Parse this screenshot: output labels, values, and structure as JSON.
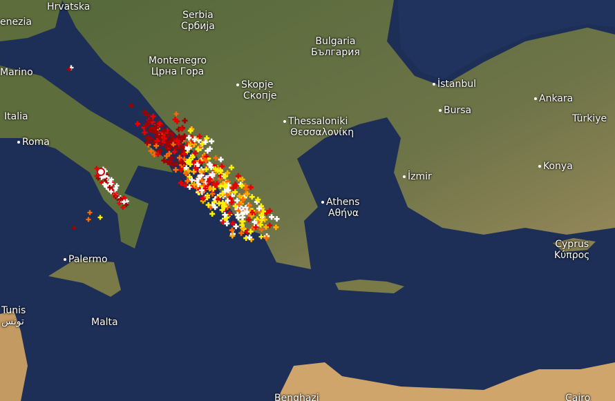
{
  "map": {
    "labels": {
      "hrvatska": "Hrvatska",
      "venezia": "enezia",
      "marino": "Marino",
      "italia": "Italia",
      "roma": "Roma",
      "serbia": "Serbia",
      "serbia_local": "Србија",
      "montenegro": "Montenegro",
      "montenegro_local": "Црна Гора",
      "bulgaria": "Bulgaria",
      "bulgaria_local": "България",
      "skopje": "Skopje",
      "skopje_local": "Скопје",
      "thessaloniki": "Thessaloniki",
      "thessaloniki_local": "Θεσσαλονίκη",
      "istanbul": "İstanbul",
      "bursa": "Bursa",
      "ankara": "Ankara",
      "turkiye": "Türkiye",
      "izmir": "İzmir",
      "konya": "Konya",
      "athens": "Athens",
      "athens_local": "Αθήνα",
      "cyprus": "Cyprus",
      "cyprus_local": "Κύπρος",
      "palermo": "Palermo",
      "tunis": "Tunis",
      "tunis_local": "تونس",
      "malta": "Malta",
      "benghazi": "Benghazi",
      "cairo": "Cairo"
    },
    "colors": {
      "sea": "#1d2f57",
      "land": "#5a6b3a",
      "desert": "#c9a26a"
    },
    "strike_age_colors": [
      "#ffffff",
      "#fff200",
      "#ffb000",
      "#ff6a00",
      "#e80000",
      "#a00000"
    ]
  }
}
